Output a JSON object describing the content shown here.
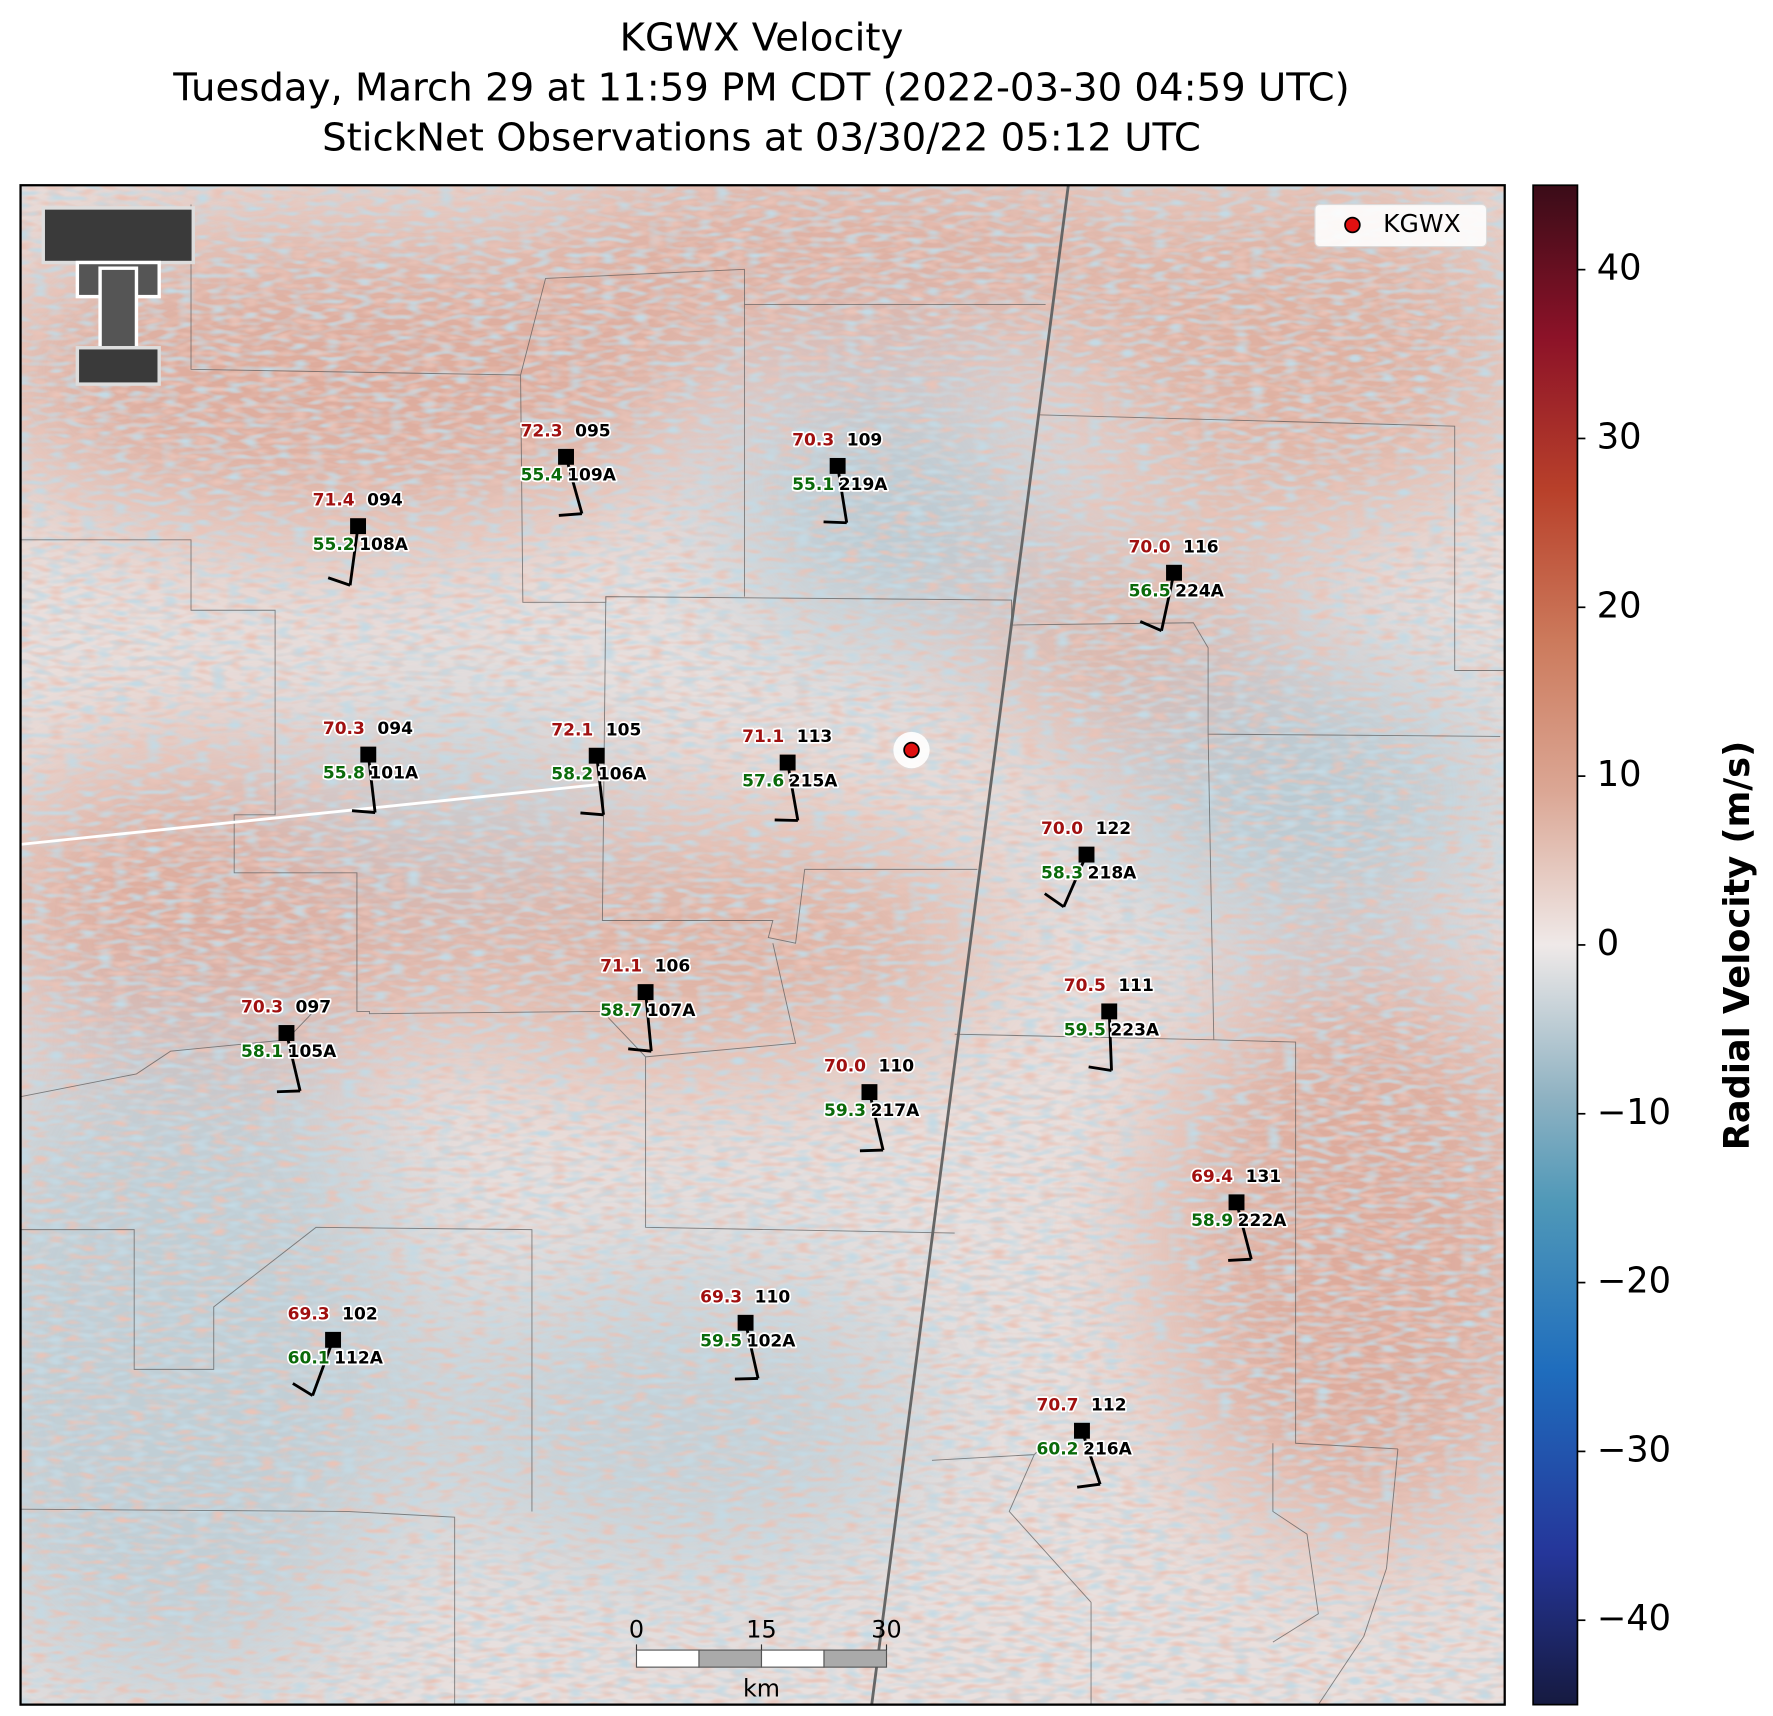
{
  "title": [
    "KGWX Velocity",
    "Tuesday, March 29 at 11:59 PM CDT (2022-03-30 04:59 UTC)",
    "StickNet Observations at 03/30/22 05:12 UTC"
  ],
  "legend": {
    "label": "KGWX"
  },
  "colorbar": {
    "label": "Radial Velocity (m/s)",
    "lim": [
      -45,
      45
    ],
    "ticks": [
      {
        "value": -40,
        "label": "−40"
      },
      {
        "value": -30,
        "label": "−30"
      },
      {
        "value": -20,
        "label": "−20"
      },
      {
        "value": -10,
        "label": "−10"
      },
      0,
      10,
      20,
      30,
      40
    ]
  },
  "scale_bar": {
    "lim": [
      0,
      30
    ],
    "ticks": [
      0,
      15,
      30
    ],
    "unit": "km"
  },
  "stations": [
    {
      "temperature": "71.4",
      "dewpoint": "55.2",
      "code": "094",
      "id": "108A"
    },
    {
      "temperature": "72.3",
      "dewpoint": "55.4",
      "code": "095",
      "id": "109A"
    },
    {
      "temperature": "70.3",
      "dewpoint": "55.1",
      "code": "109",
      "id": "219A"
    },
    {
      "temperature": "70.0",
      "dewpoint": "56.5",
      "code": "116",
      "id": "224A"
    },
    {
      "temperature": "70.3",
      "dewpoint": "55.8",
      "code": "094",
      "id": "101A"
    },
    {
      "temperature": "72.1",
      "dewpoint": "58.2",
      "code": "105",
      "id": "106A"
    },
    {
      "temperature": "71.1",
      "dewpoint": "57.6",
      "code": "113",
      "id": "215A"
    },
    {
      "temperature": "70.0",
      "dewpoint": "58.3",
      "code": "122",
      "id": "218A"
    },
    {
      "temperature": "71.1",
      "dewpoint": "58.7",
      "code": "106",
      "id": "107A"
    },
    {
      "temperature": "70.3",
      "dewpoint": "58.1",
      "code": "097",
      "id": "105A"
    },
    {
      "temperature": "70.5",
      "dewpoint": "59.5",
      "code": "111",
      "id": "223A"
    },
    {
      "temperature": "70.0",
      "dewpoint": "59.3",
      "code": "110",
      "id": "217A"
    },
    {
      "temperature": "69.4",
      "dewpoint": "58.9",
      "code": "131",
      "id": "222A"
    },
    {
      "temperature": "69.3",
      "dewpoint": "60.1",
      "code": "102",
      "id": "112A"
    },
    {
      "temperature": "69.3",
      "dewpoint": "59.5",
      "code": "110",
      "id": "102A"
    },
    {
      "temperature": "70.7",
      "dewpoint": "60.2",
      "code": "112",
      "id": "216A"
    }
  ]
}
